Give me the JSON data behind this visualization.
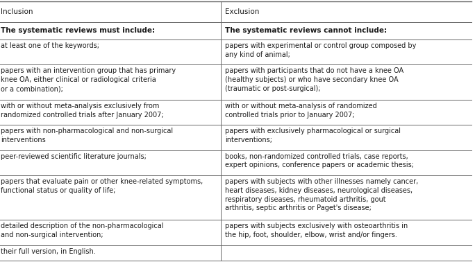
{
  "col_headers": [
    "Inclusion",
    "Exclusion"
  ],
  "subheaders": [
    "The systematic reviews must include:",
    "The systematic reviews cannot include:"
  ],
  "rows": [
    [
      "at least one of the keywords;",
      "papers with experimental or control group composed by\nany kind of animal;"
    ],
    [
      "papers with an intervention group that has primary\nknee OA, either clinical or radiological criteria\nor a combination);",
      "papers with participants that do not have a knee OA\n(healthy subjects) or who have secondary knee OA\n(traumatic or post-surgical);"
    ],
    [
      "with or without meta-analysis exclusively from\nrandomized controlled trials after January 2007;",
      "with or without meta-analysis of randomized\ncontrolled trials prior to January 2007;"
    ],
    [
      "papers with non-pharmacological and non-surgical\ninterventions",
      "papers with exclusively pharmacological or surgical\ninterventions;"
    ],
    [
      "peer-reviewed scientific literature journals;",
      "books, non-randomized controlled trials, case reports,\nexpert opinions, conference papers or academic thesis;"
    ],
    [
      "papers that evaluate pain or other knee-related symptoms,\nfunctional status or quality of life;",
      "papers with subjects with other illnesses namely cancer,\nheart diseases, kidney diseases, neurological diseases,\nrespiratory diseases, rheumatoid arthritis, gout\narthritis, septic arthritis or Paget's disease;"
    ],
    [
      "detailed description of the non-pharmacological\nand non-surgical intervention;",
      "papers with subjects exclusively with osteoarthritis in\nthe hip, foot, shoulder, elbow, wrist and/or fingers."
    ],
    [
      "their full version, in English.",
      ""
    ]
  ],
  "background_color": "#ffffff",
  "text_color": "#1a1a1a",
  "line_color": "#666666",
  "font_size": 7.0,
  "header_font_size": 7.5,
  "subheader_font_size": 7.5
}
